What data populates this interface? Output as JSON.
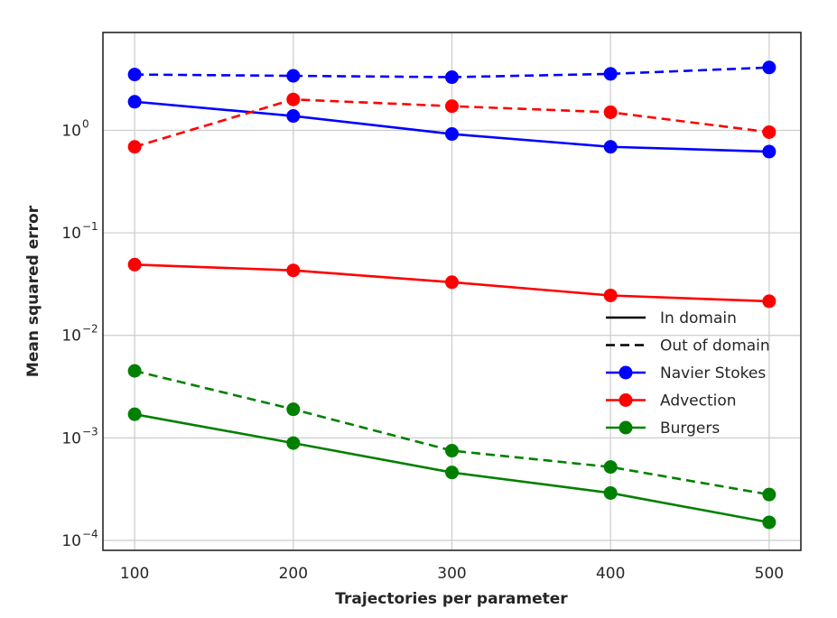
{
  "chart_data": {
    "type": "line",
    "xlabel": "Trajectories per parameter",
    "ylabel": "Mean squared error",
    "yscale": "log",
    "x": [
      100,
      200,
      300,
      400,
      500
    ],
    "xlim": [
      80,
      520
    ],
    "ylim": [
      8e-05,
      9
    ],
    "xticks": [
      100,
      200,
      300,
      400,
      500
    ],
    "xtick_labels": [
      "100",
      "200",
      "300",
      "400",
      "500"
    ],
    "yticks": [
      0.0001,
      0.001,
      0.01,
      0.1,
      1
    ],
    "ytick_labels": [
      {
        "base": "10",
        "exp": "−4"
      },
      {
        "base": "10",
        "exp": "−3"
      },
      {
        "base": "10",
        "exp": "−2"
      },
      {
        "base": "10",
        "exp": "−1"
      },
      {
        "base": "10",
        "exp": "0"
      }
    ],
    "grid": true,
    "legend_position": "lower-right",
    "legend": {
      "styles": [
        {
          "label": "In domain",
          "dash": "solid"
        },
        {
          "label": "Out of domain",
          "dash": "dashed"
        }
      ],
      "datasets": [
        {
          "label": "Navier Stokes",
          "color": "#0000ff"
        },
        {
          "label": "Advection",
          "color": "#ff0000"
        },
        {
          "label": "Burgers",
          "color": "#008000"
        }
      ]
    },
    "series": [
      {
        "dataset": "Navier Stokes",
        "domain": "In domain",
        "color": "#0000ff",
        "dash": "solid",
        "values": [
          1.9,
          1.38,
          0.92,
          0.69,
          0.62
        ]
      },
      {
        "dataset": "Navier Stokes",
        "domain": "Out of domain",
        "color": "#0000ff",
        "dash": "dashed",
        "values": [
          3.5,
          3.4,
          3.3,
          3.55,
          4.1
        ]
      },
      {
        "dataset": "Advection",
        "domain": "In domain",
        "color": "#ff0000",
        "dash": "solid",
        "values": [
          0.049,
          0.043,
          0.033,
          0.0245,
          0.0215
        ]
      },
      {
        "dataset": "Advection",
        "domain": "Out of domain",
        "color": "#ff0000",
        "dash": "dashed",
        "values": [
          0.69,
          2.0,
          1.72,
          1.5,
          0.96
        ]
      },
      {
        "dataset": "Burgers",
        "domain": "In domain",
        "color": "#008000",
        "dash": "solid",
        "values": [
          0.0017,
          0.00089,
          0.00046,
          0.00029,
          0.00015
        ]
      },
      {
        "dataset": "Burgers",
        "domain": "Out of domain",
        "color": "#008000",
        "dash": "dashed",
        "values": [
          0.0045,
          0.0019,
          0.00075,
          0.00052,
          0.00028
        ]
      }
    ]
  }
}
